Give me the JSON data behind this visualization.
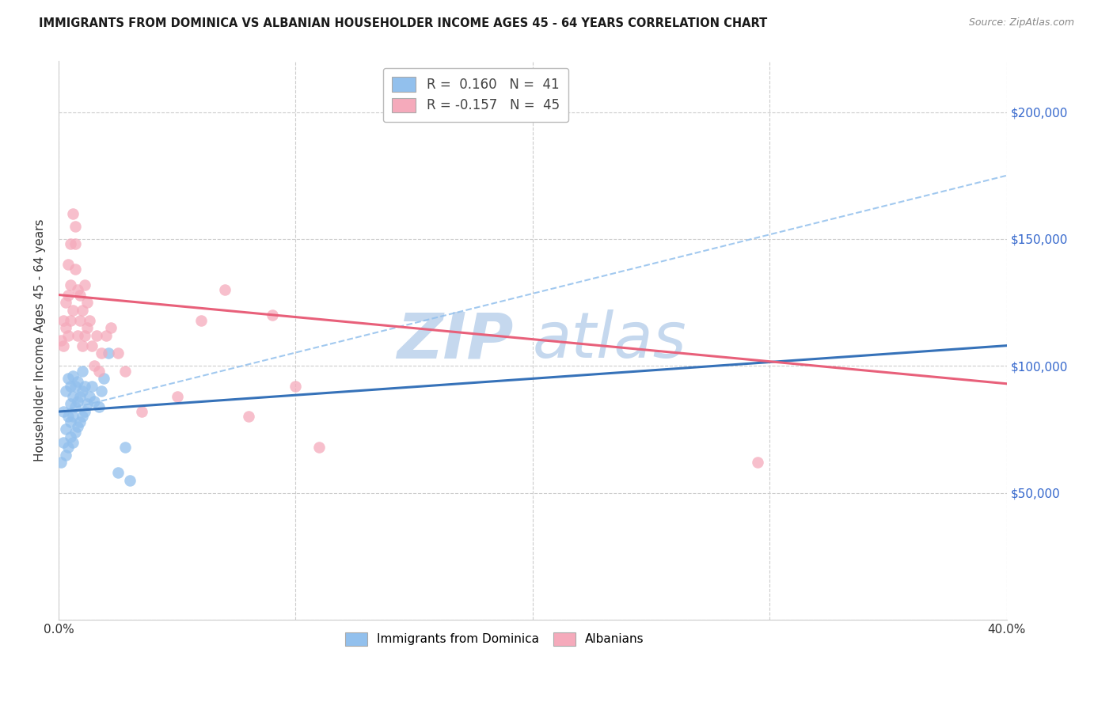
{
  "title": "IMMIGRANTS FROM DOMINICA VS ALBANIAN HOUSEHOLDER INCOME AGES 45 - 64 YEARS CORRELATION CHART",
  "source": "Source: ZipAtlas.com",
  "ylabel": "Householder Income Ages 45 - 64 years",
  "xlim": [
    0.0,
    0.4
  ],
  "ylim": [
    0,
    220000
  ],
  "xticks": [
    0.0,
    0.4
  ],
  "xtick_labels": [
    "0.0%",
    "40.0%"
  ],
  "yticks": [
    50000,
    100000,
    150000,
    200000
  ],
  "ytick_labels": [
    "$50,000",
    "$100,000",
    "$150,000",
    "$200,000"
  ],
  "blue_R": 0.16,
  "blue_N": 41,
  "pink_R": -0.157,
  "pink_N": 45,
  "blue_scatter_color": "#92C0ED",
  "pink_scatter_color": "#F5AABB",
  "blue_line_color": "#3672B9",
  "pink_line_color": "#E8607A",
  "dashed_line_color": "#92C0ED",
  "watermark_zip": "ZIP",
  "watermark_atlas": "atlas",
  "watermark_color": "#C5D8EE",
  "legend_label_blue": "Immigrants from Dominica",
  "legend_label_pink": "Albanians",
  "blue_scatter_x": [
    0.001,
    0.002,
    0.002,
    0.003,
    0.003,
    0.003,
    0.004,
    0.004,
    0.004,
    0.005,
    0.005,
    0.005,
    0.005,
    0.006,
    0.006,
    0.006,
    0.006,
    0.007,
    0.007,
    0.007,
    0.008,
    0.008,
    0.008,
    0.009,
    0.009,
    0.01,
    0.01,
    0.01,
    0.011,
    0.011,
    0.012,
    0.013,
    0.014,
    0.015,
    0.017,
    0.018,
    0.019,
    0.021,
    0.025,
    0.028,
    0.03
  ],
  "blue_scatter_y": [
    62000,
    70000,
    82000,
    65000,
    75000,
    90000,
    68000,
    80000,
    95000,
    72000,
    85000,
    78000,
    92000,
    70000,
    80000,
    88000,
    96000,
    74000,
    84000,
    92000,
    76000,
    86000,
    94000,
    78000,
    88000,
    80000,
    90000,
    98000,
    82000,
    92000,
    85000,
    88000,
    92000,
    86000,
    84000,
    90000,
    95000,
    105000,
    58000,
    68000,
    55000
  ],
  "pink_scatter_x": [
    0.001,
    0.002,
    0.002,
    0.003,
    0.003,
    0.004,
    0.004,
    0.004,
    0.005,
    0.005,
    0.005,
    0.006,
    0.006,
    0.007,
    0.007,
    0.007,
    0.008,
    0.008,
    0.009,
    0.009,
    0.01,
    0.01,
    0.011,
    0.011,
    0.012,
    0.012,
    0.013,
    0.014,
    0.015,
    0.016,
    0.017,
    0.018,
    0.02,
    0.022,
    0.025,
    0.028,
    0.035,
    0.05,
    0.06,
    0.07,
    0.08,
    0.09,
    0.1,
    0.11,
    0.295
  ],
  "pink_scatter_y": [
    110000,
    108000,
    118000,
    115000,
    125000,
    112000,
    128000,
    140000,
    118000,
    132000,
    148000,
    160000,
    122000,
    155000,
    148000,
    138000,
    130000,
    112000,
    128000,
    118000,
    122000,
    108000,
    132000,
    112000,
    125000,
    115000,
    118000,
    108000,
    100000,
    112000,
    98000,
    105000,
    112000,
    115000,
    105000,
    98000,
    82000,
    88000,
    118000,
    130000,
    80000,
    120000,
    92000,
    68000,
    62000
  ],
  "blue_line_x0": 0.0,
  "blue_line_x1": 0.4,
  "blue_line_y0": 82000,
  "blue_line_y1": 108000,
  "pink_line_x0": 0.0,
  "pink_line_x1": 0.4,
  "pink_line_y0": 128000,
  "pink_line_y1": 93000,
  "dashed_line_x0": 0.0,
  "dashed_line_x1": 0.4,
  "dashed_line_y0": 82000,
  "dashed_line_y1": 175000
}
